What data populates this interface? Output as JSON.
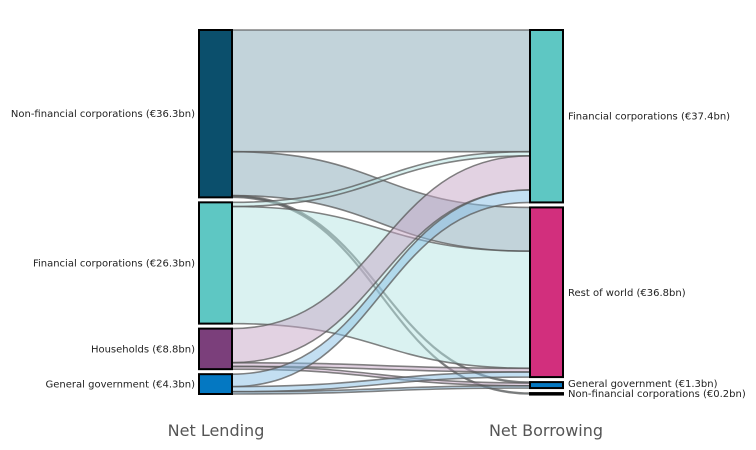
{
  "chart_data": {
    "type": "sankey",
    "columns": [
      "Net Lending",
      "Net Borrowing"
    ],
    "units": "€bn",
    "sources": [
      {
        "name": "Non-financial corporations",
        "label": "Non-financial corporations (€36.3bn)",
        "value": 36.3,
        "color": "#0b4f6c"
      },
      {
        "name": "Financial corporations",
        "label": "Financial corporations (€26.3bn)",
        "value": 26.3,
        "color": "#5ec7c3"
      },
      {
        "name": "Households",
        "label": "Households (€8.8bn)",
        "value": 8.8,
        "color": "#7b3f7b"
      },
      {
        "name": "General government",
        "label": "General government (€4.3bn)",
        "value": 4.3,
        "color": "#0478c2"
      }
    ],
    "targets": [
      {
        "name": "Financial corporations",
        "label": "Financial corporations (€37.4bn)",
        "value": 37.4,
        "color": "#5ec7c3"
      },
      {
        "name": "Rest of world",
        "label": "Rest of world (€36.8bn)",
        "value": 36.8,
        "color": "#d22f7d"
      },
      {
        "name": "General government",
        "label": "General government (€1.3bn)",
        "value": 1.3,
        "color": "#0478c2"
      },
      {
        "name": "Non-financial corporations",
        "label": "Non-financial corporations (€0.2bn)",
        "value": 0.2,
        "color": "#333333"
      }
    ],
    "links": [
      {
        "source": 0,
        "target": 0,
        "value": 26.4
      },
      {
        "source": 0,
        "target": 1,
        "value": 9.5
      },
      {
        "source": 0,
        "target": 2,
        "value": 0.2
      },
      {
        "source": 0,
        "target": 3,
        "value": 0.2
      },
      {
        "source": 1,
        "target": 0,
        "value": 0.9
      },
      {
        "source": 1,
        "target": 1,
        "value": 25.4
      },
      {
        "source": 2,
        "target": 0,
        "value": 7.4
      },
      {
        "source": 2,
        "target": 1,
        "value": 0.8
      },
      {
        "source": 2,
        "target": 2,
        "value": 0.6
      },
      {
        "source": 3,
        "target": 0,
        "value": 2.7
      },
      {
        "source": 3,
        "target": 1,
        "value": 1.1
      },
      {
        "source": 3,
        "target": 2,
        "value": 0.5
      }
    ]
  }
}
